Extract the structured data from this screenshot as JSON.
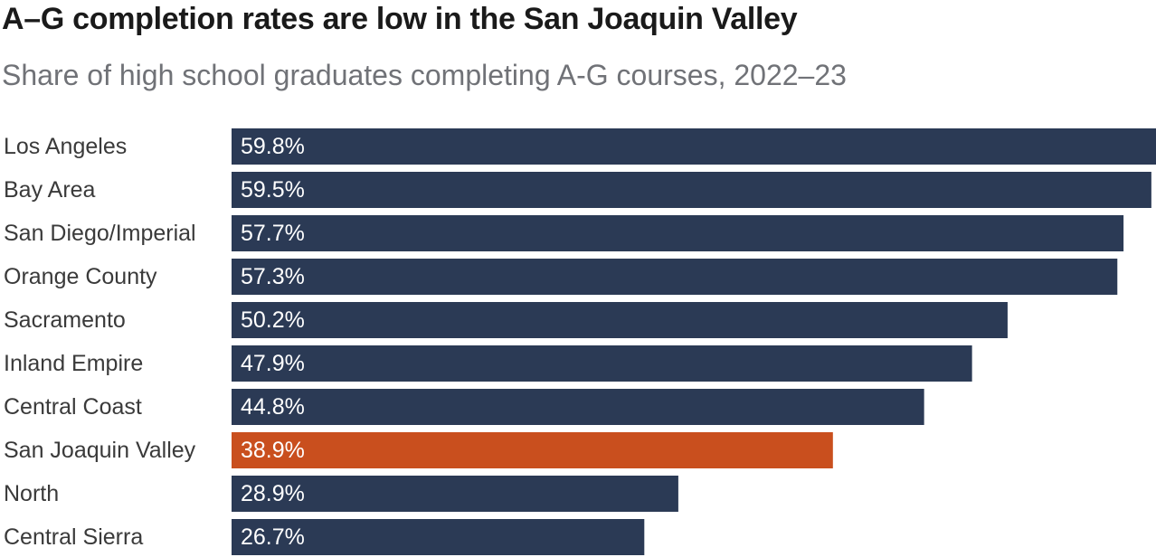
{
  "chart_data": {
    "type": "bar",
    "orientation": "horizontal",
    "title": "A–G completion rates are low in the San Joaquin Valley",
    "subtitle": "Share of high school graduates completing A-G courses, 2022–23",
    "categories": [
      "Los Angeles",
      "Bay Area",
      "San Diego/Imperial",
      "Orange County",
      "Sacramento",
      "Inland Empire",
      "Central Coast",
      "San Joaquin Valley",
      "North",
      "Central Sierra"
    ],
    "values": [
      59.8,
      59.5,
      57.7,
      57.3,
      50.2,
      47.9,
      44.8,
      38.9,
      28.9,
      26.7
    ],
    "value_labels": [
      "59.8%",
      "59.5%",
      "57.7%",
      "57.3%",
      "50.2%",
      "47.9%",
      "44.8%",
      "38.9%",
      "28.9%",
      "26.7%"
    ],
    "highlight_category": "San Joaquin Valley",
    "xlim": [
      0,
      59.8
    ],
    "grid": false,
    "legend": "none",
    "colors": {
      "default": "#2b3a55",
      "highlight": "#c94f1e"
    }
  }
}
